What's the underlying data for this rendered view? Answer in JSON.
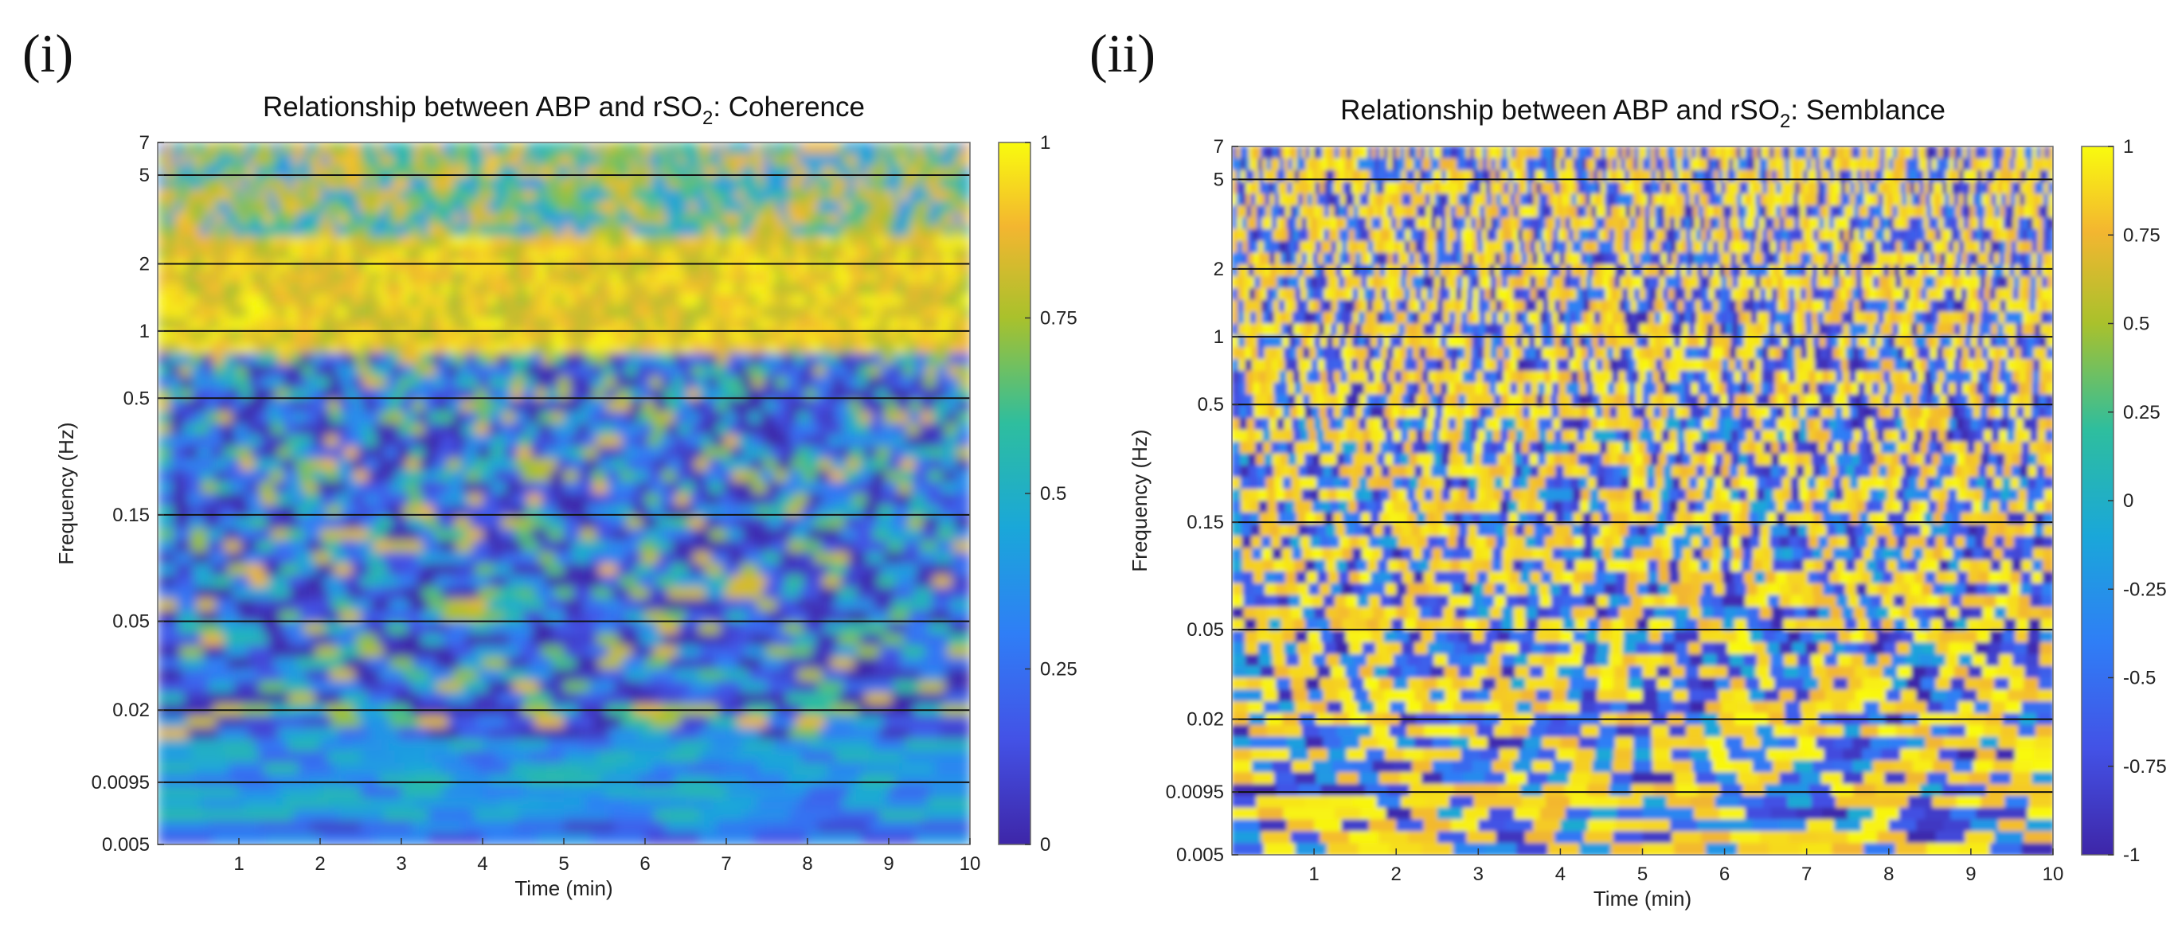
{
  "panels": [
    {
      "label": "(i)"
    },
    {
      "label": "(ii)"
    }
  ],
  "chart_data": [
    {
      "type": "heatmap",
      "title": "Relationship between ABP and rSO2: Coherence",
      "title_main": "Relationship between ABP and rSO",
      "title_sub": "2",
      "title_tail": ": Coherence",
      "xlabel": "Time (min)",
      "ylabel": "Frequency (Hz)",
      "xlim": [
        0,
        10
      ],
      "x_ticks": [
        "1",
        "2",
        "3",
        "4",
        "5",
        "6",
        "7",
        "8",
        "9",
        "10"
      ],
      "ylim": [
        0.005,
        7
      ],
      "y_scale": "log",
      "y_ticks": [
        "7",
        "5",
        "2",
        "1",
        "0.5",
        "0.15",
        "0.05",
        "0.02",
        "0.0095",
        "0.005"
      ],
      "band_lines_hz": [
        5,
        2,
        1,
        0.5,
        0.15,
        0.05,
        0.02,
        0.0095
      ],
      "colorbar_range": [
        0,
        1
      ],
      "colorbar_ticks": [
        "1",
        "0.75",
        "0.5",
        "0.25",
        "0"
      ]
    },
    {
      "type": "heatmap",
      "title": "Relationship between ABP and rSO2: Semblance",
      "title_main": "Relationship between ABP and rSO",
      "title_sub": "2",
      "title_tail": ": Semblance",
      "xlabel": "Time (min)",
      "ylabel": "Frequency (Hz)",
      "xlim": [
        0,
        10
      ],
      "x_ticks": [
        "1",
        "2",
        "3",
        "4",
        "5",
        "6",
        "7",
        "8",
        "9",
        "10"
      ],
      "ylim": [
        0.005,
        7
      ],
      "y_scale": "log",
      "y_ticks": [
        "7",
        "5",
        "2",
        "1",
        "0.5",
        "0.15",
        "0.05",
        "0.02",
        "0.0095",
        "0.005"
      ],
      "band_lines_hz": [
        5,
        2,
        1,
        0.5,
        0.15,
        0.05,
        0.02,
        0.0095
      ],
      "colorbar_range": [
        -1,
        1
      ],
      "colorbar_ticks": [
        "1",
        "0.75",
        "0.5",
        "0.25",
        "0",
        "-0.25",
        "-0.5",
        "-0.75",
        "-1"
      ]
    }
  ]
}
